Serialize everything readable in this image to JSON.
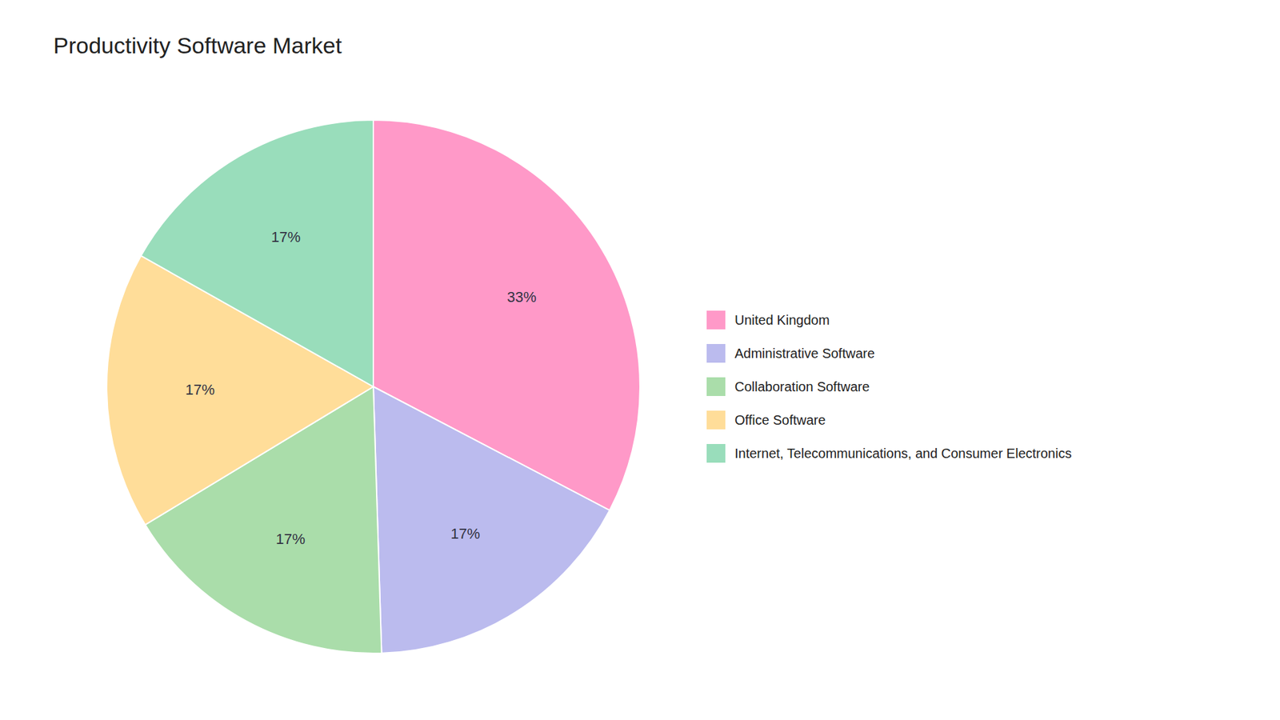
{
  "chart_data": {
    "type": "pie",
    "title": "Productivity Software Market",
    "categories": [
      "United Kingdom",
      "Administrative Software",
      "Collaboration Software",
      "Office Software",
      "Internet, Telecommunications, and Consumer Electronics"
    ],
    "values": [
      33,
      17,
      17,
      17,
      17
    ],
    "value_labels": [
      "33%",
      "17%",
      "17%",
      "17%",
      "17%"
    ],
    "colors": [
      "#FF99C8",
      "#BBBBEE",
      "#AADDAA",
      "#FFDD99",
      "#99DDBB"
    ],
    "data_labels": true,
    "legend": "right"
  }
}
